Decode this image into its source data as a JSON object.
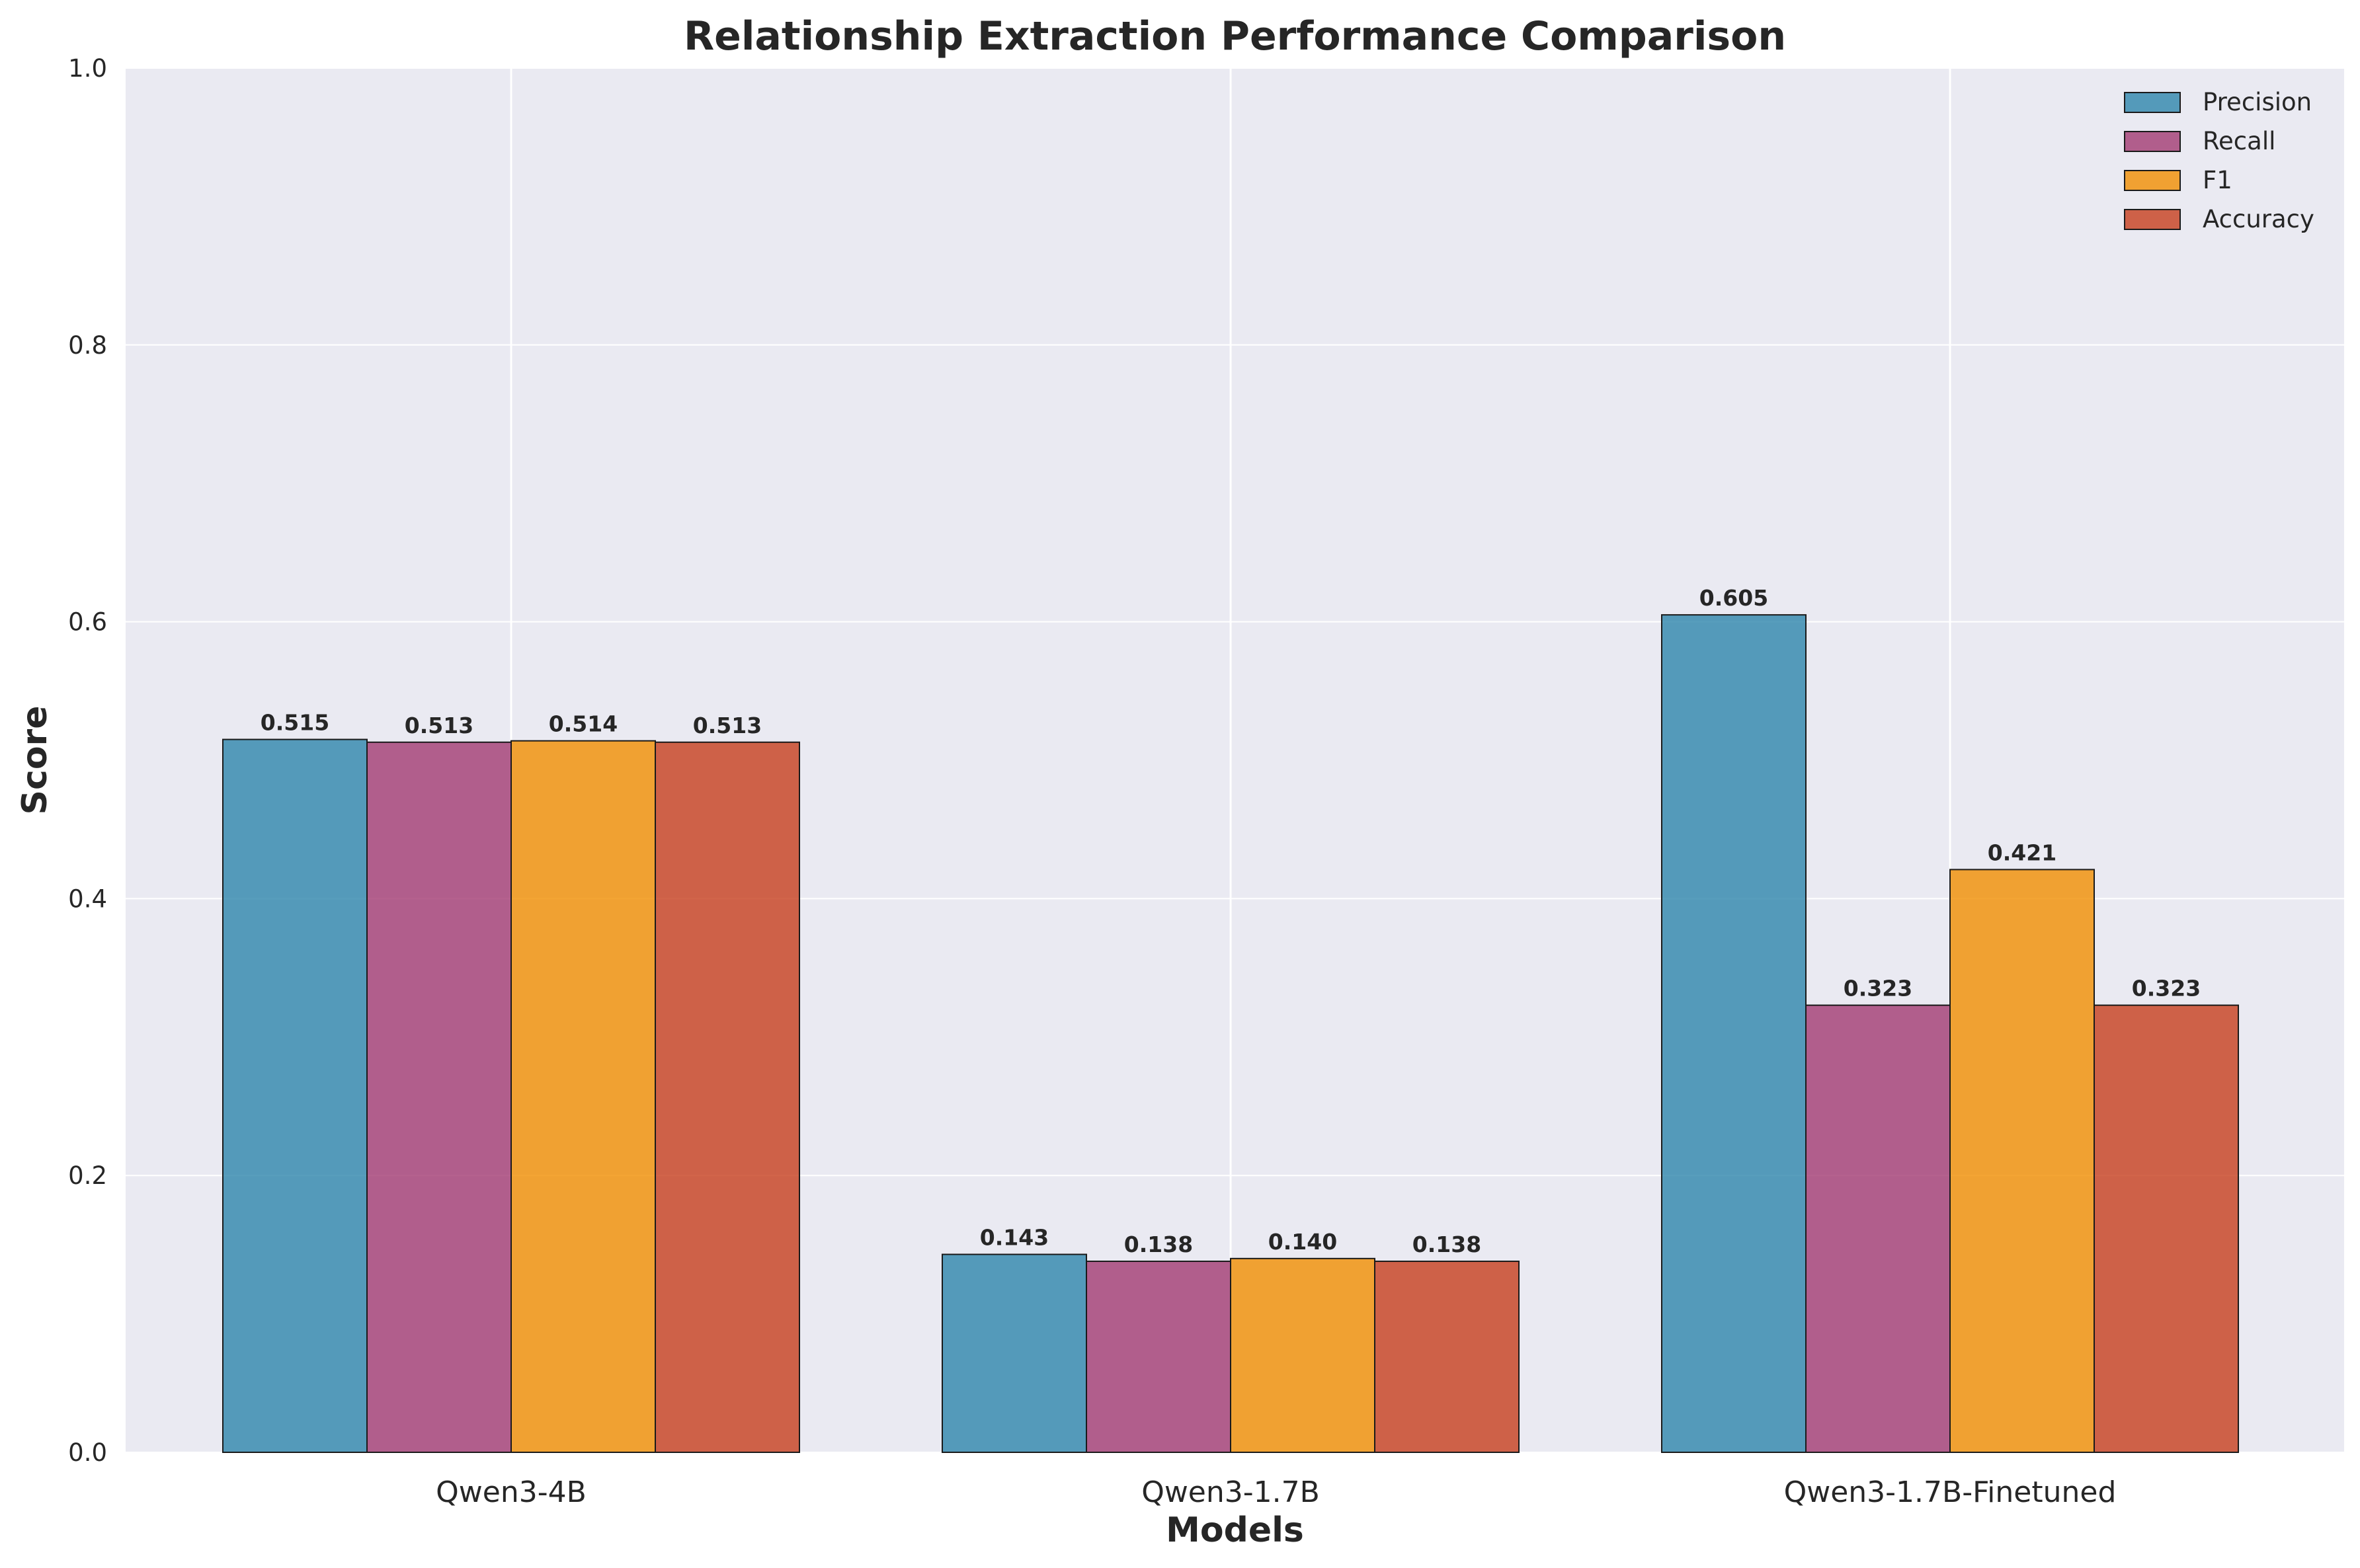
{
  "chart_data": {
    "type": "bar",
    "title": "Relationship Extraction Performance Comparison",
    "xlabel": "Models",
    "ylabel": "Score",
    "ylim": [
      0,
      1.0
    ],
    "yticks": [
      "0.0",
      "0.2",
      "0.4",
      "0.6",
      "0.8",
      "1.0"
    ],
    "categories": [
      "Qwen3-4B",
      "Qwen3-1.7B",
      "Qwen3-1.7B-Finetuned"
    ],
    "series": [
      {
        "name": "Precision",
        "color": "#2E86AB",
        "values": [
          0.515,
          0.143,
          0.605
        ],
        "labels": [
          "0.515",
          "0.143",
          "0.605"
        ]
      },
      {
        "name": "Recall",
        "color": "#A23B72",
        "values": [
          0.513,
          0.138,
          0.323
        ],
        "labels": [
          "0.513",
          "0.138",
          "0.323"
        ]
      },
      {
        "name": "F1",
        "color": "#F18F01",
        "values": [
          0.514,
          0.14,
          0.421
        ],
        "labels": [
          "0.514",
          "0.140",
          "0.421"
        ]
      },
      {
        "name": "Accuracy",
        "color": "#C73E1D",
        "values": [
          0.513,
          0.138,
          0.323
        ],
        "labels": [
          "0.513",
          "0.138",
          "0.323"
        ]
      }
    ],
    "grid": true,
    "legend_position": "top-right",
    "background_color": "#EAEAF2"
  }
}
